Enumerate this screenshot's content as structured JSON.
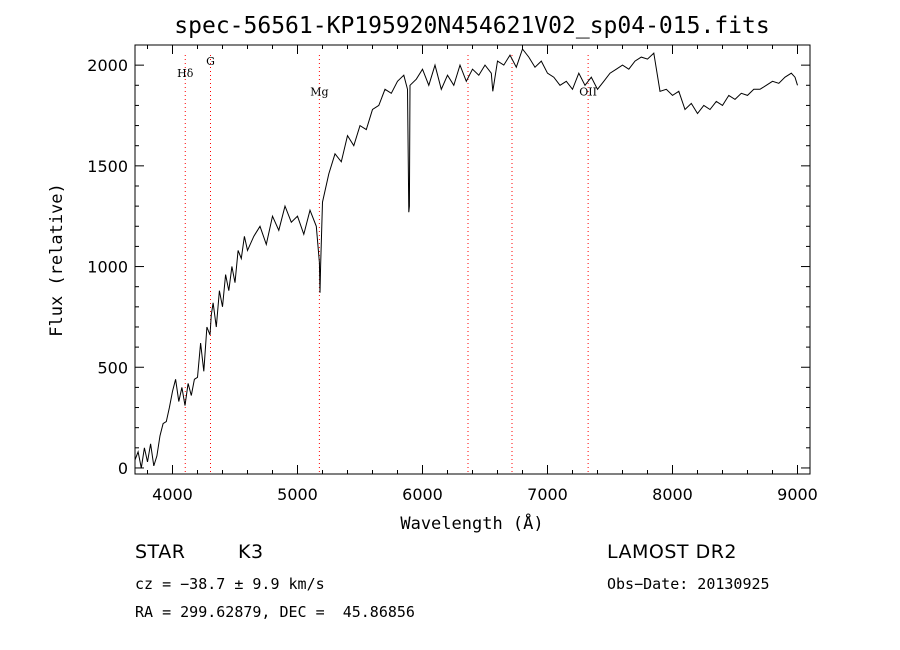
{
  "chart_data": {
    "type": "line",
    "title": "spec-56561-KP195920N454621V02_sp04-015.fits",
    "xlabel": "Wavelength (Å)",
    "ylabel": "Flux (relative)",
    "xlim": [
      3700,
      9100
    ],
    "ylim": [
      -30,
      2100
    ],
    "xticks": [
      4000,
      5000,
      6000,
      7000,
      8000,
      9000
    ],
    "yticks": [
      0,
      500,
      1000,
      1500,
      2000
    ],
    "grid": false,
    "line_color": "#000000",
    "marker_color": "#ff0000",
    "series": [
      {
        "x": [
          3700,
          3725,
          3750,
          3775,
          3800,
          3825,
          3850,
          3875,
          3900,
          3925,
          3950,
          3975,
          4000,
          4025,
          4050,
          4075,
          4100,
          4125,
          4150,
          4175,
          4200,
          4225,
          4250,
          4275,
          4300,
          4310,
          4325,
          4350,
          4375,
          4400,
          4425,
          4450,
          4475,
          4500,
          4525,
          4550,
          4575,
          4600,
          4650,
          4700,
          4750,
          4800,
          4850,
          4900,
          4950,
          5000,
          5050,
          5100,
          5150,
          5175,
          5180,
          5185,
          5200,
          5250,
          5300,
          5350,
          5400,
          5450,
          5500,
          5550,
          5600,
          5650,
          5700,
          5750,
          5800,
          5850,
          5880,
          5890,
          5895,
          5900,
          5950,
          6000,
          6050,
          6100,
          6150,
          6200,
          6250,
          6300,
          6350,
          6400,
          6450,
          6500,
          6550,
          6562,
          6600,
          6650,
          6700,
          6750,
          6800,
          6850,
          6900,
          6950,
          7000,
          7050,
          7100,
          7150,
          7200,
          7250,
          7300,
          7350,
          7400,
          7450,
          7500,
          7550,
          7600,
          7650,
          7700,
          7750,
          7800,
          7850,
          7900,
          7950,
          8000,
          8050,
          8100,
          8150,
          8200,
          8250,
          8300,
          8350,
          8400,
          8450,
          8500,
          8550,
          8600,
          8650,
          8700,
          8750,
          8800,
          8850,
          8900,
          8950,
          8980,
          9000
        ],
        "y": [
          40,
          80,
          0,
          100,
          30,
          120,
          10,
          60,
          160,
          220,
          230,
          300,
          380,
          440,
          330,
          400,
          310,
          420,
          360,
          440,
          450,
          620,
          480,
          700,
          660,
          760,
          820,
          700,
          880,
          800,
          960,
          880,
          1000,
          920,
          1080,
          1040,
          1150,
          1080,
          1150,
          1200,
          1110,
          1250,
          1180,
          1300,
          1220,
          1250,
          1160,
          1280,
          1200,
          1020,
          870,
          1000,
          1320,
          1460,
          1560,
          1520,
          1650,
          1600,
          1700,
          1680,
          1780,
          1800,
          1880,
          1860,
          1920,
          1950,
          1880,
          1270,
          1300,
          1900,
          1930,
          1980,
          1900,
          2000,
          1880,
          1950,
          1900,
          2000,
          1920,
          1980,
          1950,
          2000,
          1960,
          1870,
          2020,
          2000,
          2050,
          1990,
          2080,
          2040,
          1990,
          2020,
          1960,
          1940,
          1900,
          1920,
          1880,
          1960,
          1900,
          1940,
          1880,
          1920,
          1960,
          1980,
          2000,
          1980,
          2020,
          2040,
          2030,
          2060,
          1870,
          1880,
          1850,
          1870,
          1780,
          1810,
          1760,
          1800,
          1780,
          1820,
          1800,
          1850,
          1830,
          1860,
          1850,
          1880,
          1880,
          1900,
          1920,
          1910,
          1940,
          1960,
          1940,
          1900
        ]
      }
    ],
    "line_markers": [
      {
        "label": "Hδ",
        "x": 4102,
        "label_y": 1940
      },
      {
        "label": "G",
        "x": 4304,
        "label_y": 2000
      },
      {
        "label": "Mg",
        "x": 5175,
        "label_y": 1850
      },
      {
        "label": "",
        "x": 6364
      },
      {
        "label": "",
        "x": 6716
      },
      {
        "label": "OII",
        "x": 7325,
        "label_y": 1850
      }
    ]
  },
  "info": {
    "class": "STAR",
    "subclass": "K3",
    "cz": "cz = −38.7 ± 9.9 km/s",
    "coords": "RA = 299.62879, DEC =  45.86856",
    "survey": "LAMOST DR2",
    "obs_date": "Obs−Date: 20130925"
  }
}
